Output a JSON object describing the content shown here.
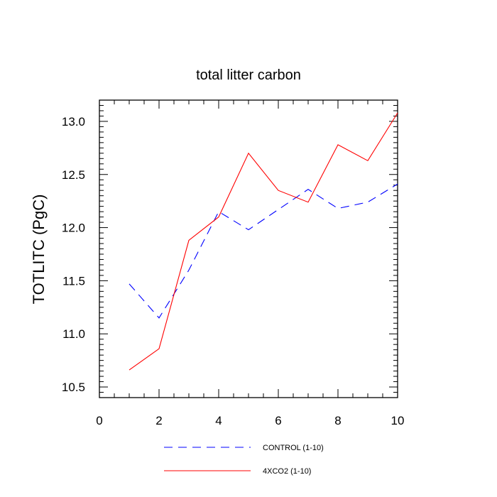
{
  "chart_data": {
    "type": "line",
    "title": "total litter carbon",
    "xlabel": "",
    "ylabel": "TOTLITC  (PgC)",
    "xlim": [
      0,
      10
    ],
    "ylim": [
      10.4,
      13.2
    ],
    "x_ticks": [
      0,
      2,
      4,
      6,
      8,
      10
    ],
    "y_ticks": [
      10.5,
      11.0,
      11.5,
      12.0,
      12.5,
      13.0
    ],
    "x_tick_labels": [
      "0",
      "2",
      "4",
      "6",
      "8",
      "10"
    ],
    "y_tick_labels": [
      "10.5",
      "11.0",
      "11.5",
      "12.0",
      "12.5",
      "13.0"
    ],
    "grid": false,
    "legend_position": "bottom",
    "x": [
      1,
      2,
      3,
      4,
      5,
      6,
      7,
      8,
      9,
      10
    ],
    "series": [
      {
        "name": "CONTROL (1-10)",
        "color": "#0000ff",
        "style": "dashed",
        "values": [
          11.47,
          11.15,
          11.6,
          12.15,
          11.98,
          12.17,
          12.36,
          12.18,
          12.24,
          12.41
        ]
      },
      {
        "name": "4XCO2 (1-10)",
        "color": "#ff0000",
        "style": "solid",
        "values": [
          10.66,
          10.86,
          11.88,
          12.1,
          12.7,
          12.35,
          12.24,
          12.78,
          12.63,
          13.08
        ]
      }
    ]
  }
}
